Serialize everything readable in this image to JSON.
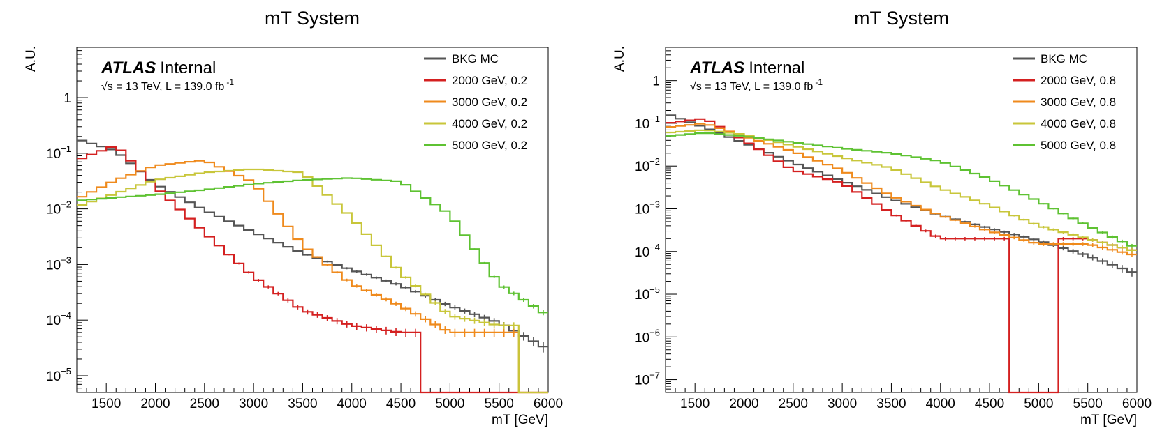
{
  "colors": {
    "BKG MC": "#555555",
    "2000": "#d42020",
    "3000": "#ef8a1c",
    "4000": "#c8c63a",
    "5000": "#5ec232"
  },
  "chart_data": [
    {
      "type": "line",
      "step": true,
      "log_y": true,
      "title": "mT System",
      "xlabel": "mT [GeV]",
      "ylabel": "A.U.",
      "xlim": [
        1200,
        6000
      ],
      "ylim": [
        5e-06,
        8
      ],
      "x_ticks": [
        1500,
        2000,
        2500,
        3000,
        3500,
        4000,
        4500,
        5000,
        5500,
        6000
      ],
      "y_ticks": [
        {
          "value": 1e-05,
          "base": "10",
          "exp": "−5"
        },
        {
          "value": 0.0001,
          "base": "10",
          "exp": "−4"
        },
        {
          "value": 0.001,
          "base": "10",
          "exp": "−3"
        },
        {
          "value": 0.01,
          "base": "10",
          "exp": "−2"
        },
        {
          "value": 0.1,
          "base": "10",
          "exp": "−1"
        },
        {
          "value": 1,
          "base": "1",
          "exp": ""
        }
      ],
      "atlas_label": "ATLAS",
      "atlas_status": "Internal",
      "lumi_text": "√s = 13 TeV, L = 139.0 fb",
      "lumi_exp": "-1",
      "legend_position": "top-right",
      "x": [
        1200,
        1600,
        2000,
        2500,
        3000,
        3500,
        4000,
        4500,
        5000,
        5500,
        6000
      ],
      "series": [
        {
          "name": "BKG MC",
          "color_key": "BKG MC",
          "values": [
            0.18,
            0.11,
            0.028,
            0.0095,
            0.0038,
            0.0016,
            0.0008,
            0.00042,
            0.00018,
            9e-05,
            3e-05
          ]
        },
        {
          "name": "2000 GeV, 0.2",
          "color_key": "2000",
          "values": [
            0.075,
            0.14,
            0.025,
            0.0038,
            0.0006,
            0.00015,
            8e-05,
            6e-05,
            0,
            0,
            0
          ]
        },
        {
          "name": "3000 GeV, 0.2",
          "color_key": "3000",
          "values": [
            0.015,
            0.033,
            0.06,
            0.075,
            0.03,
            0.0022,
            0.00045,
            0.00018,
            6e-05,
            6e-05,
            0
          ]
        },
        {
          "name": "4000 GeV, 0.2",
          "color_key": "4000",
          "values": [
            0.011,
            0.019,
            0.033,
            0.045,
            0.052,
            0.045,
            0.007,
            0.0007,
            0.00012,
            8e-05,
            0
          ]
        },
        {
          "name": "5000 GeV, 0.2",
          "color_key": "5000",
          "values": [
            0.014,
            0.016,
            0.018,
            0.022,
            0.028,
            0.033,
            0.036,
            0.031,
            0.008,
            0.00045,
            0.00012
          ]
        }
      ]
    },
    {
      "type": "line",
      "step": true,
      "log_y": true,
      "title": "mT System",
      "xlabel": "mT [GeV]",
      "ylabel": "A.U.",
      "xlim": [
        1200,
        6000
      ],
      "ylim": [
        5e-08,
        6
      ],
      "x_ticks": [
        1500,
        2000,
        2500,
        3000,
        3500,
        4000,
        4500,
        5000,
        5500,
        6000
      ],
      "y_ticks": [
        {
          "value": 1e-07,
          "base": "10",
          "exp": "−7"
        },
        {
          "value": 1e-06,
          "base": "10",
          "exp": "−6"
        },
        {
          "value": 1e-05,
          "base": "10",
          "exp": "−5"
        },
        {
          "value": 0.0001,
          "base": "10",
          "exp": "−4"
        },
        {
          "value": 0.001,
          "base": "10",
          "exp": "−3"
        },
        {
          "value": 0.01,
          "base": "10",
          "exp": "−2"
        },
        {
          "value": 0.1,
          "base": "10",
          "exp": "−1"
        },
        {
          "value": 1,
          "base": "1",
          "exp": ""
        }
      ],
      "atlas_label": "ATLAS",
      "atlas_status": "Internal",
      "lumi_text": "√s = 13 TeV, L = 139.0 fb",
      "lumi_exp": "-1",
      "legend_position": "top-right",
      "x": [
        1200,
        1600,
        2000,
        2500,
        3000,
        3500,
        4000,
        4500,
        5000,
        5500,
        6000
      ],
      "series": [
        {
          "name": "BKG MC",
          "color_key": "BKG MC",
          "values": [
            0.17,
            0.08,
            0.035,
            0.012,
            0.0045,
            0.0017,
            0.0007,
            0.00035,
            0.00018,
            8e-05,
            3e-05
          ]
        },
        {
          "name": "2000 GeV, 0.8",
          "color_key": "2000",
          "values": [
            0.1,
            0.13,
            0.04,
            0.008,
            0.004,
            0.0008,
            0.0002,
            0.0002,
            0,
            0.0002,
            0.0001
          ]
        },
        {
          "name": "3000 GeV, 0.8",
          "color_key": "3000",
          "values": [
            0.08,
            0.1,
            0.05,
            0.022,
            0.008,
            0.002,
            0.0007,
            0.0003,
            0.00015,
            0.00015,
            8e-05
          ]
        },
        {
          "name": "4000 GeV, 0.8",
          "color_key": "4000",
          "values": [
            0.06,
            0.07,
            0.055,
            0.03,
            0.016,
            0.009,
            0.003,
            0.0012,
            0.0004,
            0.0002,
            0.0001
          ]
        },
        {
          "name": "5000 GeV, 0.8",
          "color_key": "5000",
          "values": [
            0.05,
            0.06,
            0.05,
            0.036,
            0.026,
            0.02,
            0.013,
            0.005,
            0.0015,
            0.0004,
            0.00012
          ]
        }
      ]
    }
  ]
}
